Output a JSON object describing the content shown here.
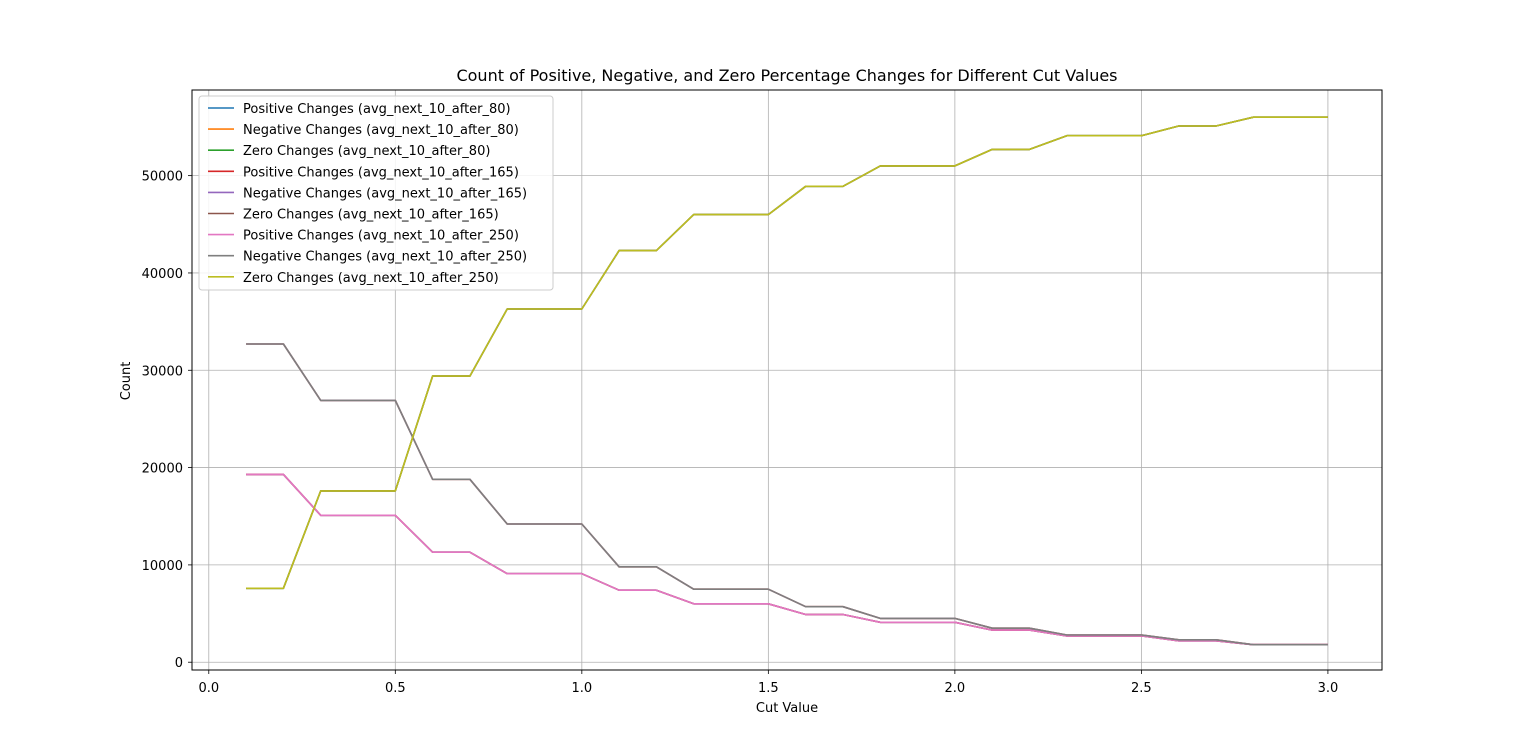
{
  "chart_data": {
    "type": "line",
    "title": "Count of Positive, Negative, and Zero Percentage Changes for Different Cut Values",
    "xlabel": "Cut Value",
    "ylabel": "Count",
    "xlim": [
      -0.045,
      3.145
    ],
    "ylim": [
      -800,
      58800
    ],
    "xticks": [
      0.0,
      0.5,
      1.0,
      1.5,
      2.0,
      2.5,
      3.0
    ],
    "xtick_labels": [
      "0.0",
      "0.5",
      "1.0",
      "1.5",
      "2.0",
      "2.5",
      "3.0"
    ],
    "yticks": [
      0,
      10000,
      20000,
      30000,
      40000,
      50000
    ],
    "ytick_labels": [
      "0",
      "10000",
      "20000",
      "30000",
      "40000",
      "50000"
    ],
    "grid": true,
    "legend_position": "top-left",
    "x": [
      0.1,
      0.2,
      0.3,
      0.4,
      0.5,
      0.6,
      0.7,
      0.8,
      0.9,
      1.0,
      1.1,
      1.2,
      1.3,
      1.4,
      1.5,
      1.6,
      1.7,
      1.8,
      1.9,
      2.0,
      2.1,
      2.2,
      2.3,
      2.4,
      2.5,
      2.6,
      2.7,
      2.8,
      2.9,
      3.0
    ],
    "series": [
      {
        "name": "Positive Changes (avg_next_10_after_80)",
        "color": "#1f77b4",
        "values": [
          19300,
          19300,
          15100,
          15100,
          15100,
          11300,
          11300,
          9100,
          9100,
          9100,
          7400,
          7400,
          6000,
          6000,
          6000,
          4900,
          4900,
          4100,
          4100,
          4100,
          3300,
          3300,
          2700,
          2700,
          2700,
          2200,
          2200,
          1800,
          1800,
          1800
        ]
      },
      {
        "name": "Negative Changes (avg_next_10_after_80)",
        "color": "#ff7f0e",
        "values": [
          32700,
          32700,
          26900,
          26900,
          26900,
          18800,
          18800,
          14200,
          14200,
          14200,
          9800,
          9800,
          7500,
          7500,
          7500,
          5700,
          5700,
          4500,
          4500,
          4500,
          3500,
          3500,
          2800,
          2800,
          2800,
          2300,
          2300,
          1800,
          1800,
          1800
        ]
      },
      {
        "name": "Zero Changes (avg_next_10_after_80)",
        "color": "#2ca02c",
        "values": [
          7600,
          7600,
          17600,
          17600,
          17600,
          29400,
          29400,
          36300,
          36300,
          36300,
          42300,
          42300,
          46000,
          46000,
          46000,
          48900,
          48900,
          51000,
          51000,
          51000,
          52700,
          52700,
          54100,
          54100,
          54100,
          55100,
          55100,
          56000,
          56000,
          56000
        ]
      },
      {
        "name": "Positive Changes (avg_next_10_after_165)",
        "color": "#d62728",
        "values": [
          19300,
          19300,
          15100,
          15100,
          15100,
          11300,
          11300,
          9100,
          9100,
          9100,
          7400,
          7400,
          6000,
          6000,
          6000,
          4900,
          4900,
          4100,
          4100,
          4100,
          3300,
          3300,
          2700,
          2700,
          2700,
          2200,
          2200,
          1800,
          1800,
          1800
        ]
      },
      {
        "name": "Negative Changes (avg_next_10_after_165)",
        "color": "#9467bd",
        "values": [
          32700,
          32700,
          26900,
          26900,
          26900,
          18800,
          18800,
          14200,
          14200,
          14200,
          9800,
          9800,
          7500,
          7500,
          7500,
          5700,
          5700,
          4500,
          4500,
          4500,
          3500,
          3500,
          2800,
          2800,
          2800,
          2300,
          2300,
          1800,
          1800,
          1800
        ]
      },
      {
        "name": "Zero Changes (avg_next_10_after_165)",
        "color": "#8c564b",
        "values": [
          7600,
          7600,
          17600,
          17600,
          17600,
          29400,
          29400,
          36300,
          36300,
          36300,
          42300,
          42300,
          46000,
          46000,
          46000,
          48900,
          48900,
          51000,
          51000,
          51000,
          52700,
          52700,
          54100,
          54100,
          54100,
          55100,
          55100,
          56000,
          56000,
          56000
        ]
      },
      {
        "name": "Positive Changes (avg_next_10_after_250)",
        "color": "#e377c2",
        "values": [
          19300,
          19300,
          15100,
          15100,
          15100,
          11300,
          11300,
          9100,
          9100,
          9100,
          7400,
          7400,
          6000,
          6000,
          6000,
          4900,
          4900,
          4100,
          4100,
          4100,
          3300,
          3300,
          2700,
          2700,
          2700,
          2200,
          2200,
          1800,
          1800,
          1800
        ]
      },
      {
        "name": "Negative Changes (avg_next_10_after_250)",
        "color": "#7f7f7f",
        "values": [
          32700,
          32700,
          26900,
          26900,
          26900,
          18800,
          18800,
          14200,
          14200,
          14200,
          9800,
          9800,
          7500,
          7500,
          7500,
          5700,
          5700,
          4500,
          4500,
          4500,
          3500,
          3500,
          2800,
          2800,
          2800,
          2300,
          2300,
          1800,
          1800,
          1800
        ]
      },
      {
        "name": "Zero Changes (avg_next_10_after_250)",
        "color": "#bcbd22",
        "values": [
          7600,
          7600,
          17600,
          17600,
          17600,
          29400,
          29400,
          36300,
          36300,
          36300,
          42300,
          42300,
          46000,
          46000,
          46000,
          48900,
          48900,
          51000,
          51000,
          51000,
          52700,
          52700,
          54100,
          54100,
          54100,
          55100,
          55100,
          56000,
          56000,
          56000
        ]
      }
    ]
  }
}
